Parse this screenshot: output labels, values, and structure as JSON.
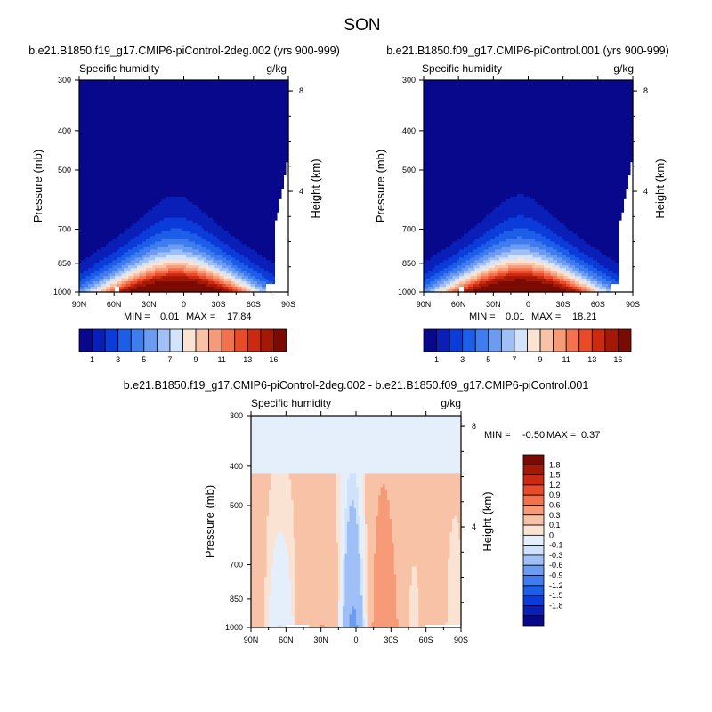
{
  "figure_title": "SON",
  "colors": {
    "abs_palette": [
      "#08088c",
      "#0a1fb8",
      "#0b3cd9",
      "#1d5ee8",
      "#3f7cf0",
      "#6b9cf2",
      "#9fbff6",
      "#d2e3fb",
      "#fbe3d4",
      "#f8c2a6",
      "#f79a78",
      "#f3714c",
      "#e94a27",
      "#cc2a10",
      "#a51806",
      "#7a0b02"
    ],
    "diff_palette": [
      "#08088c",
      "#0a1fb8",
      "#0b3cd9",
      "#1d5ee8",
      "#3f7cf0",
      "#6b9cf2",
      "#9fbff6",
      "#cfe2fa",
      "#e5effc",
      "#fbe3d4",
      "#f8c2a6",
      "#f79a78",
      "#f3714c",
      "#e94a27",
      "#cc2a10",
      "#a51806",
      "#7a0b02"
    ]
  },
  "chart_data": [
    {
      "type": "heatmap",
      "panel": "top-left",
      "title": "b.e21.B1850.f19_g17.CMIP6-piControl-2deg.002 (yrs 900-999)",
      "left_label": "Specific humidity",
      "right_label": "g/kg",
      "xlabel": "",
      "ylabel": "Pressure (mb)",
      "y2label": "Height (km)",
      "x_ticks": [
        "90N",
        "60N",
        "30N",
        "0",
        "30S",
        "60S",
        "90S"
      ],
      "x_values": [
        90,
        60,
        30,
        0,
        -30,
        -60,
        -90
      ],
      "y_ticks": [
        "300",
        "400",
        "500",
        "700",
        "850",
        "1000"
      ],
      "y_values": [
        300,
        400,
        500,
        700,
        850,
        1000
      ],
      "ylim": [
        300,
        1000
      ],
      "y2_ticks": [
        "8",
        "4"
      ],
      "y2_values": [
        8,
        4
      ],
      "min_label": "MIN =",
      "min_value": "0.01",
      "max_label": "MAX =",
      "max_value": "17.84",
      "peak_value": 17.84,
      "peak_lat": 7,
      "colorbar_labels": [
        "1",
        "3",
        "5",
        "7",
        "9",
        "11",
        "13",
        "16"
      ]
    },
    {
      "type": "heatmap",
      "panel": "top-right",
      "title": "b.e21.B1850.f09_g17.CMIP6-piControl.001 (yrs 900-999)",
      "left_label": "Specific humidity",
      "right_label": "g/kg",
      "xlabel": "",
      "ylabel": "Pressure (mb)",
      "y2label": "Height (km)",
      "x_ticks": [
        "90N",
        "60N",
        "30N",
        "0",
        "30S",
        "60S",
        "90S"
      ],
      "x_values": [
        90,
        60,
        30,
        0,
        -30,
        -60,
        -90
      ],
      "y_ticks": [
        "300",
        "400",
        "500",
        "700",
        "850",
        "1000"
      ],
      "y_values": [
        300,
        400,
        500,
        700,
        850,
        1000
      ],
      "ylim": [
        300,
        1000
      ],
      "y2_ticks": [
        "8",
        "4"
      ],
      "y2_values": [
        8,
        4
      ],
      "min_label": "MIN =",
      "min_value": "0.01",
      "max_label": "MAX =",
      "max_value": "18.21",
      "peak_value": 18.21,
      "peak_lat": 7,
      "colorbar_labels": [
        "1",
        "3",
        "5",
        "7",
        "9",
        "11",
        "13",
        "16"
      ]
    },
    {
      "type": "heatmap",
      "panel": "bottom",
      "title": "b.e21.B1850.f19_g17.CMIP6-piControl-2deg.002 - b.e21.B1850.f09_g17.CMIP6-piControl.001",
      "left_label": "Specific humidity",
      "right_label": "g/kg",
      "xlabel": "",
      "ylabel": "Pressure (mb)",
      "y2label": "Height (km)",
      "x_ticks": [
        "90N",
        "60N",
        "30N",
        "0",
        "30S",
        "60S",
        "90S"
      ],
      "x_values": [
        90,
        60,
        30,
        0,
        -30,
        -60,
        -90
      ],
      "y_ticks": [
        "300",
        "400",
        "500",
        "700",
        "850",
        "1000"
      ],
      "y_values": [
        300,
        400,
        500,
        700,
        850,
        1000
      ],
      "ylim": [
        300,
        1000
      ],
      "y2_ticks": [
        "8",
        "4"
      ],
      "y2_values": [
        8,
        4
      ],
      "min_label": "MIN =",
      "min_value": "-0.50",
      "max_label": "MAX =",
      "max_value": "0.37",
      "colorbar_labels": [
        "1.8",
        "1.5",
        "1.2",
        "0.9",
        "0.6",
        "0.3",
        "0.1",
        "0",
        "-0.1",
        "-0.3",
        "-0.6",
        "-0.9",
        "-1.2",
        "-1.5",
        "-1.8"
      ]
    }
  ]
}
